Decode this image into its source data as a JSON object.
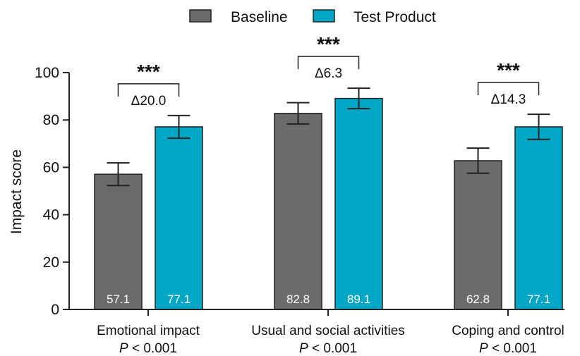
{
  "chart_data": {
    "type": "bar",
    "categories": [
      "Emotional impact",
      "Usual and social activities",
      "Coping and control"
    ],
    "category_pvalues": [
      {
        "p": "P",
        "rest": " < 0.001"
      },
      {
        "p": "P",
        "rest": " < 0.001"
      },
      {
        "p": "P",
        "rest": " < 0.001"
      }
    ],
    "series": [
      {
        "name": "Baseline",
        "color": "#6b6b6b",
        "values": [
          57.1,
          82.8,
          62.8
        ],
        "labels": [
          "57.1",
          "82.8",
          "62.8"
        ],
        "error": [
          4.8,
          4.5,
          5.3
        ]
      },
      {
        "name": "Test Product",
        "color": "#00a6c6",
        "values": [
          77.1,
          89.1,
          77.1
        ],
        "labels": [
          "77.1",
          "89.1",
          "77.1"
        ],
        "error": [
          4.8,
          4.3,
          5.3
        ]
      }
    ],
    "significance": [
      {
        "stars": "***",
        "delta": "Δ20.0"
      },
      {
        "stars": "***",
        "delta": "Δ6.3"
      },
      {
        "stars": "***",
        "delta": "Δ14.3"
      }
    ],
    "ylabel": "Impact score",
    "ylim": [
      0,
      100
    ],
    "yticks": [
      "0",
      "20",
      "40",
      "60",
      "80",
      "100"
    ],
    "legend_position": "top-center",
    "grid": false
  }
}
